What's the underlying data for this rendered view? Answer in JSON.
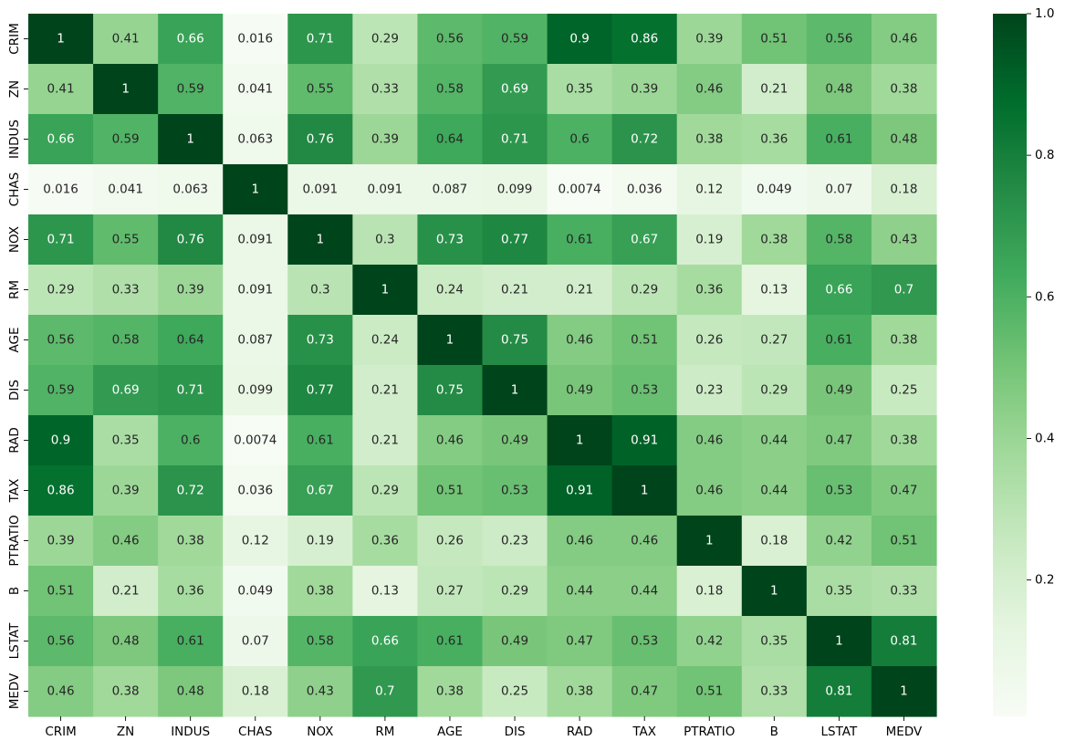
{
  "chart_data": {
    "type": "heatmap",
    "title": "",
    "xlabel": "",
    "ylabel": "",
    "x_labels": [
      "CRIM",
      "ZN",
      "INDUS",
      "CHAS",
      "NOX",
      "RM",
      "AGE",
      "DIS",
      "RAD",
      "TAX",
      "PTRATIO",
      "B",
      "LSTAT",
      "MEDV"
    ],
    "y_labels": [
      "CRIM",
      "ZN",
      "INDUS",
      "CHAS",
      "NOX",
      "RM",
      "AGE",
      "DIS",
      "RAD",
      "TAX",
      "PTRATIO",
      "B",
      "LSTAT",
      "MEDV"
    ],
    "values": [
      [
        1,
        0.41,
        0.66,
        0.016,
        0.71,
        0.29,
        0.56,
        0.59,
        0.9,
        0.86,
        0.39,
        0.51,
        0.56,
        0.46
      ],
      [
        0.41,
        1,
        0.59,
        0.041,
        0.55,
        0.33,
        0.58,
        0.69,
        0.35,
        0.39,
        0.46,
        0.21,
        0.48,
        0.38
      ],
      [
        0.66,
        0.59,
        1,
        0.063,
        0.76,
        0.39,
        0.64,
        0.71,
        0.6,
        0.72,
        0.38,
        0.36,
        0.61,
        0.48
      ],
      [
        0.016,
        0.041,
        0.063,
        1,
        0.091,
        0.091,
        0.087,
        0.099,
        0.0074,
        0.036,
        0.12,
        0.049,
        0.07,
        0.18
      ],
      [
        0.71,
        0.55,
        0.76,
        0.091,
        1,
        0.3,
        0.73,
        0.77,
        0.61,
        0.67,
        0.19,
        0.38,
        0.58,
        0.43
      ],
      [
        0.29,
        0.33,
        0.39,
        0.091,
        0.3,
        1,
        0.24,
        0.21,
        0.21,
        0.29,
        0.36,
        0.13,
        0.66,
        0.7
      ],
      [
        0.56,
        0.58,
        0.64,
        0.087,
        0.73,
        0.24,
        1,
        0.75,
        0.46,
        0.51,
        0.26,
        0.27,
        0.61,
        0.38
      ],
      [
        0.59,
        0.69,
        0.71,
        0.099,
        0.77,
        0.21,
        0.75,
        1,
        0.49,
        0.53,
        0.23,
        0.29,
        0.49,
        0.25
      ],
      [
        0.9,
        0.35,
        0.6,
        0.0074,
        0.61,
        0.21,
        0.46,
        0.49,
        1,
        0.91,
        0.46,
        0.44,
        0.47,
        0.38
      ],
      [
        0.86,
        0.39,
        0.72,
        0.036,
        0.67,
        0.29,
        0.51,
        0.53,
        0.91,
        1,
        0.46,
        0.44,
        0.53,
        0.47
      ],
      [
        0.39,
        0.46,
        0.38,
        0.12,
        0.19,
        0.36,
        0.26,
        0.23,
        0.46,
        0.46,
        1,
        0.18,
        0.42,
        0.51
      ],
      [
        0.51,
        0.21,
        0.36,
        0.049,
        0.38,
        0.13,
        0.27,
        0.29,
        0.44,
        0.44,
        0.18,
        1,
        0.35,
        0.33
      ],
      [
        0.56,
        0.48,
        0.61,
        0.07,
        0.58,
        0.66,
        0.61,
        0.49,
        0.47,
        0.53,
        0.42,
        0.35,
        1,
        0.81
      ],
      [
        0.46,
        0.38,
        0.48,
        0.18,
        0.43,
        0.7,
        0.38,
        0.25,
        0.38,
        0.47,
        0.51,
        0.33,
        0.81,
        1
      ]
    ],
    "colormap": "Greens",
    "colormap_stops": [
      "#f7fcf5",
      "#e5f5e0",
      "#c7e9c0",
      "#a1d99b",
      "#74c476",
      "#41ab5d",
      "#238b45",
      "#006d2c",
      "#00441b"
    ],
    "vmin": 0.0074,
    "vmax": 1,
    "colorbar_ticks": [
      {
        "value": 0.2,
        "label": "0.2"
      },
      {
        "value": 0.4,
        "label": "0.4"
      },
      {
        "value": 0.6,
        "label": "0.6"
      },
      {
        "value": 0.8,
        "label": "0.8"
      },
      {
        "value": 1.0,
        "label": "1.0"
      }
    ],
    "text_color_dark": "#262626",
    "text_color_light": "#ffffff",
    "legend": "colorbar-right",
    "grid": false
  }
}
